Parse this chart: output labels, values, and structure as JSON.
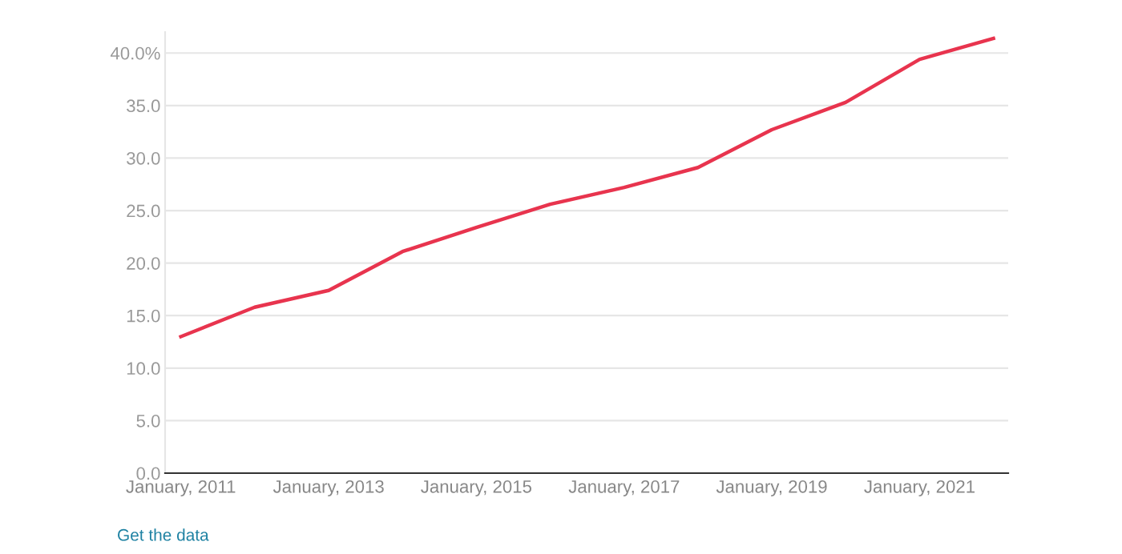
{
  "chart_data": {
    "type": "line",
    "x": [
      "2011-01",
      "2012-01",
      "2013-01",
      "2014-01",
      "2015-01",
      "2016-01",
      "2017-01",
      "2018-01",
      "2019-01",
      "2020-01",
      "2021-01",
      "2022-01"
    ],
    "series": [
      {
        "color": "#e8344e",
        "values": [
          13.0,
          15.8,
          17.4,
          21.1,
          23.4,
          25.6,
          27.2,
          29.1,
          32.7,
          35.3,
          39.4,
          41.4
        ]
      }
    ],
    "xlim": [
      "2010-10-15",
      "2022-03-15"
    ],
    "xticks": [
      {
        "value": "2011-01",
        "label": "January, 2011"
      },
      {
        "value": "2013-01",
        "label": "January, 2013"
      },
      {
        "value": "2015-01",
        "label": "January, 2015"
      },
      {
        "value": "2017-01",
        "label": "January, 2017"
      },
      {
        "value": "2019-01",
        "label": "January, 2019"
      },
      {
        "value": "2021-01",
        "label": "January, 2021"
      }
    ],
    "ylim": [
      0,
      42
    ],
    "yticks": [
      {
        "value": 0,
        "label": "0.0"
      },
      {
        "value": 5,
        "label": "5.0"
      },
      {
        "value": 10,
        "label": "10.0"
      },
      {
        "value": 15,
        "label": "15.0"
      },
      {
        "value": 20,
        "label": "20.0"
      },
      {
        "value": 25,
        "label": "25.0"
      },
      {
        "value": 30,
        "label": "30.0"
      },
      {
        "value": 35,
        "label": "35.0"
      },
      {
        "value": 40,
        "label": "40.0%"
      }
    ],
    "grid": "y",
    "line_style": "solid",
    "annotations": [
      "Get the data"
    ]
  }
}
